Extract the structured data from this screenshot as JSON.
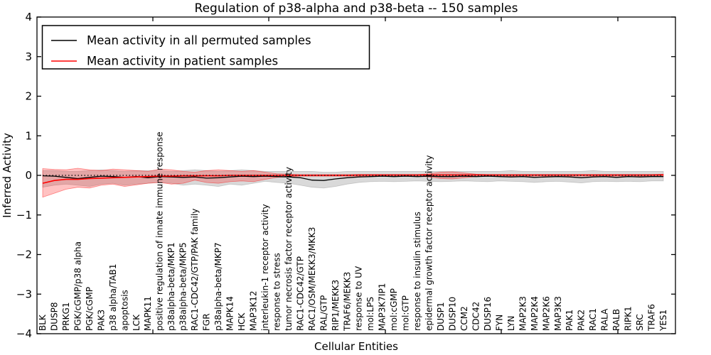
{
  "figure": {
    "title": "Regulation of p38-alpha and p38-beta -- 150 samples",
    "xlabel": "Cellular Entities",
    "ylabel": "Inferred Activity"
  },
  "chart_data": {
    "type": "line",
    "title": "Regulation of p38-alpha and p38-beta -- 150 samples",
    "xlabel": "Cellular Entities",
    "ylabel": "Inferred Activity",
    "ylim": [
      -4,
      4
    ],
    "yticks": [
      -4,
      -3,
      -2,
      -1,
      0,
      1,
      2,
      3,
      4
    ],
    "grid": false,
    "legend_position": "upper left",
    "zero_reference_line": 0,
    "colors": {
      "permuted": "#000000",
      "patient": "#ff0000",
      "permuted_band": "rgba(120,120,120,0.28)",
      "patient_band": "rgba(255,30,30,0.27)"
    },
    "categories": [
      "BLK",
      "DUSP8",
      "PRKG1",
      "PGK/cGMP/p38 alpha",
      "PGK/cGMP",
      "PAK3",
      "p38 alpha/TAB1",
      "apoptosis",
      "LCK",
      "MAPK11",
      "positive regulation of innate immune response",
      "p38alpha-beta/MKP1",
      "p38alpha-beta/MKP5",
      "RAC1-CDC42/GTP/PAK family",
      "FGR",
      "p38alpha-beta/MKP7",
      "MAPK14",
      "HCK",
      "MAP3K12",
      "interleukin-1 receptor activity",
      "response to stress",
      "tumor necrosis factor receptor activity",
      "RAC1-CDC42/GTP",
      "RAC1/OSM/MEKK3/MKK3",
      "RAL/GTP",
      "RIP1/MEKK3",
      "TRAF6/MEKK3",
      "response to UV",
      "mol:LPS",
      "MAP3K7IP1",
      "mol:cGMP",
      "mol:GTP",
      "response to insulin stimulus",
      "epidermal growth factor receptor activity",
      "DUSP1",
      "DUSP10",
      "CCM2",
      "CDC42",
      "DUSP16",
      "FYN",
      "LYN",
      "MAP2K3",
      "MAP2K4",
      "MAP2K6",
      "MAP3K3",
      "PAK1",
      "PAK2",
      "RAC1",
      "RALA",
      "RALB",
      "RIPK1",
      "SRC",
      "TRAF6",
      "YES1"
    ],
    "series": [
      {
        "name": "Mean activity in all permuted samples",
        "color": "#000000",
        "values": [
          -0.01,
          -0.02,
          -0.05,
          -0.08,
          -0.05,
          -0.02,
          -0.03,
          -0.05,
          -0.03,
          -0.06,
          -0.03,
          -0.04,
          -0.05,
          -0.04,
          -0.07,
          -0.06,
          -0.04,
          -0.02,
          -0.03,
          -0.02,
          -0.03,
          -0.04,
          -0.06,
          -0.12,
          -0.13,
          -0.09,
          -0.06,
          -0.04,
          -0.03,
          -0.02,
          -0.03,
          -0.02,
          -0.03,
          -0.02,
          -0.03,
          -0.03,
          -0.02,
          -0.03,
          -0.02,
          -0.03,
          -0.04,
          -0.03,
          -0.05,
          -0.04,
          -0.03,
          -0.04,
          -0.06,
          -0.04,
          -0.03,
          -0.05,
          -0.03,
          -0.04,
          -0.03,
          -0.03
        ],
        "band_upper": [
          0.12,
          0.12,
          0.1,
          0.1,
          0.12,
          0.14,
          0.12,
          0.1,
          0.12,
          0.12,
          0.12,
          0.1,
          0.12,
          0.14,
          0.12,
          0.1,
          0.12,
          0.14,
          0.12,
          0.1,
          0.1,
          0.1,
          0.1,
          0.1,
          0.08,
          0.08,
          0.1,
          0.1,
          0.1,
          0.1,
          0.1,
          0.1,
          0.1,
          0.1,
          0.1,
          0.1,
          0.1,
          0.1,
          0.1,
          0.1,
          0.12,
          0.1,
          0.1,
          0.1,
          0.1,
          0.1,
          0.1,
          0.12,
          0.1,
          0.1,
          0.1,
          0.1,
          0.1,
          0.1
        ],
        "band_lower": [
          -0.3,
          -0.25,
          -0.22,
          -0.25,
          -0.28,
          -0.22,
          -0.2,
          -0.25,
          -0.22,
          -0.2,
          -0.18,
          -0.2,
          -0.25,
          -0.22,
          -0.25,
          -0.28,
          -0.22,
          -0.25,
          -0.2,
          -0.15,
          -0.18,
          -0.2,
          -0.25,
          -0.3,
          -0.32,
          -0.28,
          -0.22,
          -0.18,
          -0.16,
          -0.15,
          -0.16,
          -0.15,
          -0.14,
          -0.15,
          -0.16,
          -0.15,
          -0.14,
          -0.15,
          -0.16,
          -0.14,
          -0.15,
          -0.16,
          -0.18,
          -0.16,
          -0.15,
          -0.17,
          -0.19,
          -0.16,
          -0.15,
          -0.16,
          -0.15,
          -0.16,
          -0.14,
          -0.14
        ]
      },
      {
        "name": "Mean activity in patient samples",
        "color": "#ff0000",
        "values": [
          -0.2,
          -0.13,
          -0.1,
          -0.1,
          -0.08,
          -0.07,
          -0.06,
          -0.05,
          -0.04,
          -0.03,
          -0.02,
          -0.02,
          -0.01,
          -0.01,
          -0.01,
          -0.01,
          0.0,
          0.0,
          0.0,
          0.0,
          0.0,
          0.0,
          0.0,
          0.0,
          0.0,
          0.0,
          0.0,
          0.01,
          0.01,
          0.01,
          0.01,
          0.01,
          0.01,
          0.01,
          0.01,
          0.01,
          0.01,
          0.01,
          0.01,
          0.01,
          0.01,
          0.01,
          0.01,
          0.01,
          0.01,
          0.01,
          0.01,
          0.01,
          0.01,
          0.01,
          0.01,
          0.01,
          0.01,
          0.01
        ],
        "band_upper": [
          0.17,
          0.15,
          0.14,
          0.18,
          0.14,
          0.12,
          0.16,
          0.14,
          0.12,
          0.1,
          0.16,
          0.14,
          0.1,
          0.08,
          0.12,
          0.14,
          0.12,
          0.1,
          0.12,
          0.08,
          0.04,
          0.03,
          0.02,
          0.02,
          0.02,
          0.02,
          0.02,
          0.02,
          0.02,
          0.02,
          0.02,
          0.02,
          0.02,
          0.04,
          0.08,
          0.09,
          0.06,
          0.03,
          0.02,
          0.02,
          0.02,
          0.02,
          0.02,
          0.02,
          0.02,
          0.02,
          0.02,
          0.02,
          0.02,
          0.02,
          0.02,
          0.02,
          0.02,
          0.03
        ],
        "band_lower": [
          -0.55,
          -0.45,
          -0.35,
          -0.3,
          -0.32,
          -0.25,
          -0.22,
          -0.28,
          -0.24,
          -0.2,
          -0.18,
          -0.22,
          -0.2,
          -0.12,
          -0.18,
          -0.2,
          -0.16,
          -0.14,
          -0.16,
          -0.1,
          -0.05,
          -0.03,
          -0.02,
          -0.02,
          -0.02,
          -0.02,
          -0.02,
          -0.02,
          -0.02,
          -0.02,
          -0.02,
          -0.02,
          -0.02,
          -0.04,
          -0.08,
          -0.09,
          -0.06,
          -0.03,
          -0.02,
          -0.02,
          -0.02,
          -0.02,
          -0.02,
          -0.02,
          -0.02,
          -0.02,
          -0.02,
          -0.02,
          -0.02,
          -0.02,
          -0.02,
          -0.02,
          -0.02,
          -0.03
        ]
      }
    ]
  }
}
